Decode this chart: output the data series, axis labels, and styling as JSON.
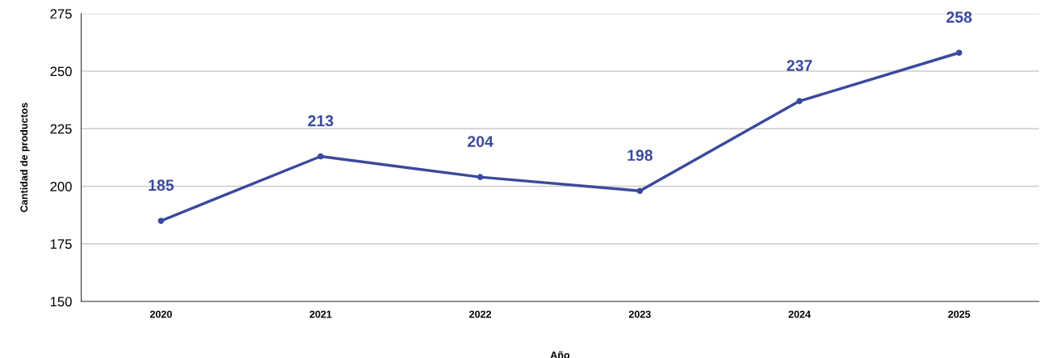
{
  "chart_data": {
    "type": "line",
    "xlabel": "Año",
    "ylabel": "Cantidad de productos",
    "categories": [
      "2020",
      "2021",
      "2022",
      "2023",
      "2024",
      "2025"
    ],
    "series": [
      {
        "color": "#3b4a9c",
        "values": [
          185,
          213,
          204,
          198,
          237,
          258
        ]
      }
    ],
    "ylim": [
      150,
      275
    ],
    "yticks": [
      150,
      175,
      200,
      225,
      250,
      275
    ],
    "grid": "y",
    "marker": "circle",
    "line_style": "solid",
    "data_labels": true
  }
}
